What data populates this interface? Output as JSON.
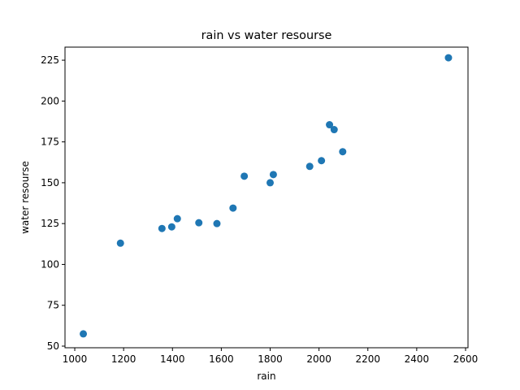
{
  "chart_data": {
    "type": "scatter",
    "title": "rain vs water resourse",
    "xlabel": "rain",
    "ylabel": "water resourse",
    "xlim": [
      960,
      2610
    ],
    "ylim": [
      49,
      233
    ],
    "xticks": [
      1000,
      1200,
      1400,
      1600,
      1800,
      2000,
      2200,
      2400,
      2600
    ],
    "yticks": [
      50,
      75,
      100,
      125,
      150,
      175,
      200,
      225
    ],
    "grid": false,
    "marker_color": "#1f77b4",
    "points": [
      {
        "x": 1035,
        "y": 57.5
      },
      {
        "x": 1187,
        "y": 113
      },
      {
        "x": 1357,
        "y": 122
      },
      {
        "x": 1397,
        "y": 123
      },
      {
        "x": 1420,
        "y": 128
      },
      {
        "x": 1508,
        "y": 125.5
      },
      {
        "x": 1582,
        "y": 125
      },
      {
        "x": 1648,
        "y": 134.5
      },
      {
        "x": 1694,
        "y": 154
      },
      {
        "x": 1800,
        "y": 150
      },
      {
        "x": 1813,
        "y": 155
      },
      {
        "x": 1962,
        "y": 160
      },
      {
        "x": 2010,
        "y": 163.5
      },
      {
        "x": 2043,
        "y": 185.5
      },
      {
        "x": 2062,
        "y": 182.5
      },
      {
        "x": 2097,
        "y": 169
      },
      {
        "x": 2530,
        "y": 226.5
      }
    ]
  }
}
